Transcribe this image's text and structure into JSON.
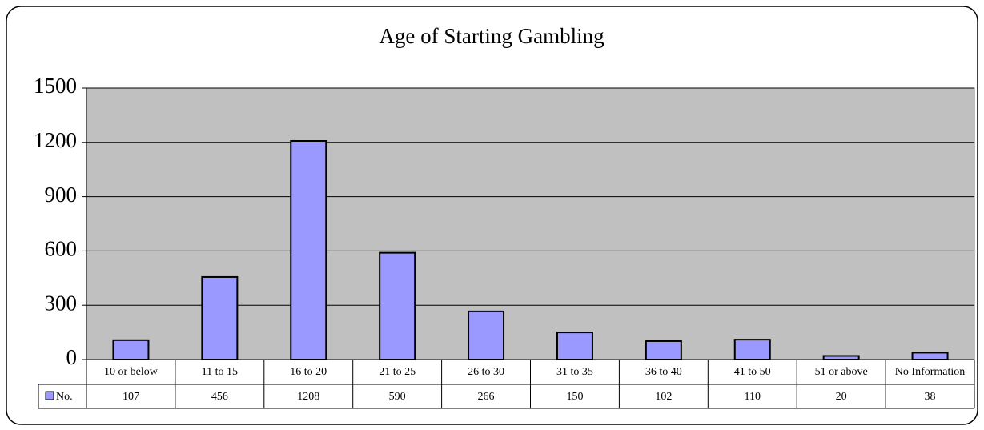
{
  "chart_data": {
    "type": "bar",
    "title": "Age of Starting Gambling",
    "categories": [
      "10 or below",
      "11 to 15",
      "16 to 20",
      "21 to 25",
      "26 to 30",
      "31 to 35",
      "36 to 40",
      "41 to 50",
      "51 or above",
      "No Information"
    ],
    "series": [
      {
        "name": "No.",
        "color": "#9999ff",
        "values": [
          107,
          456,
          1208,
          590,
          266,
          150,
          102,
          110,
          20,
          38
        ]
      }
    ],
    "ylim": [
      0,
      1500
    ],
    "yticks": [
      0,
      300,
      600,
      900,
      1200,
      1500
    ],
    "grid": true,
    "plot_background": "#c0c0c0",
    "data_table": true
  }
}
